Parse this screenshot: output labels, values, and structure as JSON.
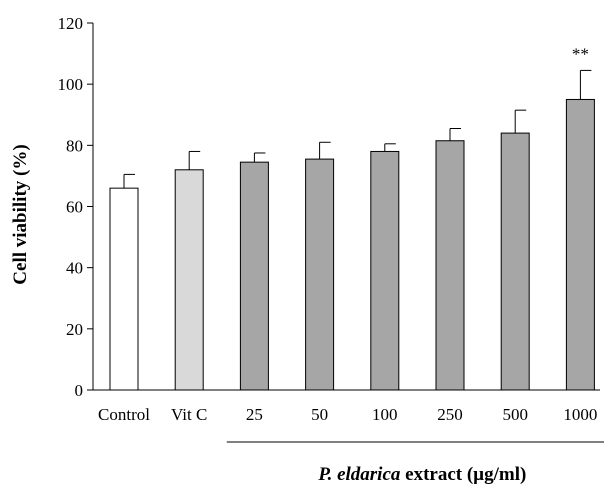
{
  "chart_data": {
    "type": "bar",
    "title": "",
    "ylabel": "Cell viability (%)",
    "ylim": [
      0,
      120
    ],
    "yticks": [
      0,
      20,
      40,
      60,
      80,
      100,
      120
    ],
    "categories": [
      "Control",
      "Vit C",
      "25",
      "50",
      "100",
      "250",
      "500",
      "1000"
    ],
    "values": [
      66,
      72,
      74.5,
      75.5,
      78,
      81.5,
      84,
      95
    ],
    "errors": [
      4.5,
      6,
      3,
      5.5,
      2.5,
      4,
      7.5,
      9.5
    ],
    "bar_colors": [
      "#ffffff",
      "#d9d9d9",
      "#a6a6a6",
      "#a6a6a6",
      "#a6a6a6",
      "#a6a6a6",
      "#a6a6a6",
      "#a6a6a6"
    ],
    "annotations": [
      {
        "category": "1000",
        "text": "**"
      }
    ],
    "group_label": {
      "italic": "P. eldarica",
      "rest": " extract (µg/ml)",
      "from_category": "25",
      "to_category": "1000"
    },
    "grid": false,
    "legend": "none"
  }
}
